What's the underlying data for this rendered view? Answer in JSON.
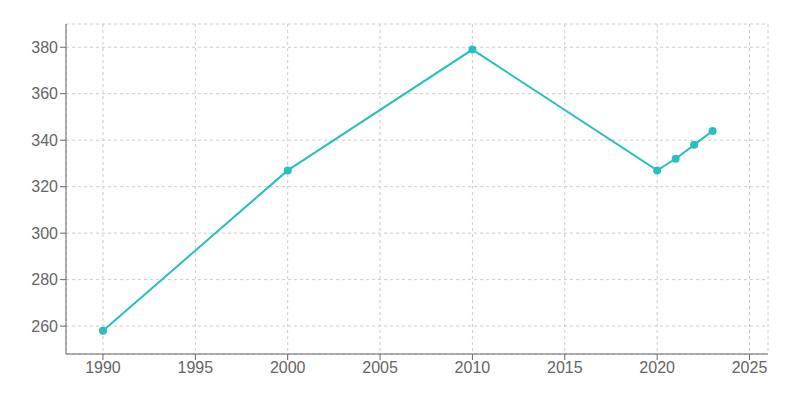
{
  "chart_data": {
    "type": "line",
    "x": [
      1990,
      2000,
      2010,
      2020,
      2021,
      2022,
      2023
    ],
    "values": [
      258,
      327,
      379,
      327,
      332,
      338,
      344
    ],
    "color": "#2abfbf",
    "marker": "circle",
    "xlim": [
      1988,
      2026
    ],
    "xticks": [
      1990,
      1995,
      2000,
      2005,
      2010,
      2015,
      2020,
      2025
    ],
    "ylim": [
      248,
      390
    ],
    "yticks": [
      260,
      280,
      300,
      320,
      340,
      360,
      380
    ],
    "grid": true
  }
}
